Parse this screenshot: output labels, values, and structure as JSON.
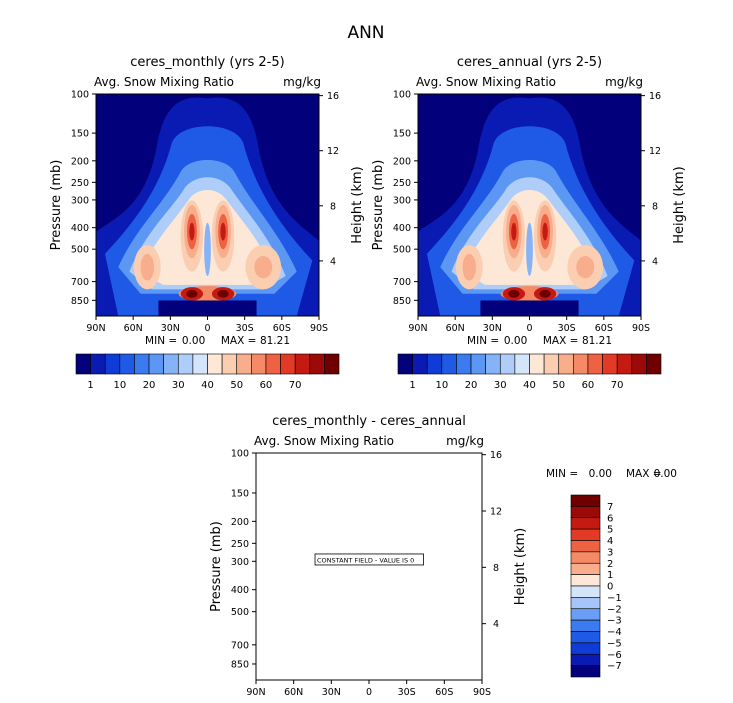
{
  "page_title": "ANN",
  "colors": {
    "palette": [
      "#02007a",
      "#0a1bb4",
      "#0f3bd6",
      "#1f5ae6",
      "#3a7bf0",
      "#5d97f4",
      "#86b2f6",
      "#aecdf8",
      "#d4e5fa",
      "#fde7d6",
      "#fbcdb1",
      "#f8ad8c",
      "#f48a66",
      "#ee6142",
      "#e23a25",
      "#c51a12",
      "#9c0a08",
      "#6f0000"
    ],
    "diff_palette": [
      "#02007a",
      "#0a1bb4",
      "#0f3bd6",
      "#1f5ae6",
      "#3a7bf0",
      "#6a9ef4",
      "#a6c5f8",
      "#d4e5fa",
      "#fde7d6",
      "#f8ad8c",
      "#f48a66",
      "#ee6142",
      "#e23a25",
      "#c51a12",
      "#9c0a08",
      "#6f0000"
    ]
  },
  "chart_data": [
    {
      "type": "heatmap",
      "title": "ceres_monthly (yrs 2-5)",
      "left_subtitle": "Avg. Snow Mixing Ratio",
      "right_subtitle": "mg/kg",
      "ylabel": "Pressure (mb)",
      "y2label": "Height (km)",
      "xticks": [
        "90N",
        "60N",
        "30N",
        "0",
        "30S",
        "60S",
        "90S"
      ],
      "yticks": [
        "100",
        "150",
        "200",
        "250",
        "300",
        "400",
        "500",
        "700",
        "850"
      ],
      "y2ticks": [
        "16",
        "12",
        "8",
        "4"
      ],
      "min_label": "MIN =",
      "min_value": "0.00",
      "max_label": "MAX =",
      "max_value": "81.21",
      "colorbar_labels": [
        "1",
        "10",
        "20",
        "30",
        "40",
        "50",
        "60",
        "70"
      ]
    },
    {
      "type": "heatmap",
      "title": "ceres_annual (yrs 2-5)",
      "left_subtitle": "Avg. Snow Mixing Ratio",
      "right_subtitle": "mg/kg",
      "ylabel": "Pressure (mb)",
      "y2label": "Height (km)",
      "xticks": [
        "90N",
        "60N",
        "30N",
        "0",
        "30S",
        "60S",
        "90S"
      ],
      "yticks": [
        "100",
        "150",
        "200",
        "250",
        "300",
        "400",
        "500",
        "700",
        "850"
      ],
      "y2ticks": [
        "16",
        "12",
        "8",
        "4"
      ],
      "min_label": "MIN =",
      "min_value": "0.00",
      "max_label": "MAX =",
      "max_value": "81.21",
      "colorbar_labels": [
        "1",
        "10",
        "20",
        "30",
        "40",
        "50",
        "60",
        "70"
      ]
    },
    {
      "type": "heatmap",
      "title": "ceres_monthly - ceres_annual",
      "left_subtitle": "Avg. Snow Mixing Ratio",
      "right_subtitle": "mg/kg",
      "ylabel": "Pressure (mb)",
      "y2label": "Height (km)",
      "xticks": [
        "90N",
        "60N",
        "30N",
        "0",
        "30S",
        "60S",
        "90S"
      ],
      "yticks": [
        "100",
        "150",
        "200",
        "250",
        "300",
        "400",
        "500",
        "700",
        "850"
      ],
      "y2ticks": [
        "16",
        "12",
        "8",
        "4"
      ],
      "min_label": "MIN =",
      "min_value": "0.00",
      "max_label": "MAX =",
      "max_value": "0.00",
      "constant_note": "CONSTANT FIELD - VALUE IS 0",
      "colorbar_labels": [
        "7",
        "6",
        "5",
        "4",
        "3",
        "2",
        "1",
        "0",
        "-1",
        "-2",
        "-3",
        "-4",
        "-5",
        "-6",
        "-7"
      ]
    }
  ]
}
